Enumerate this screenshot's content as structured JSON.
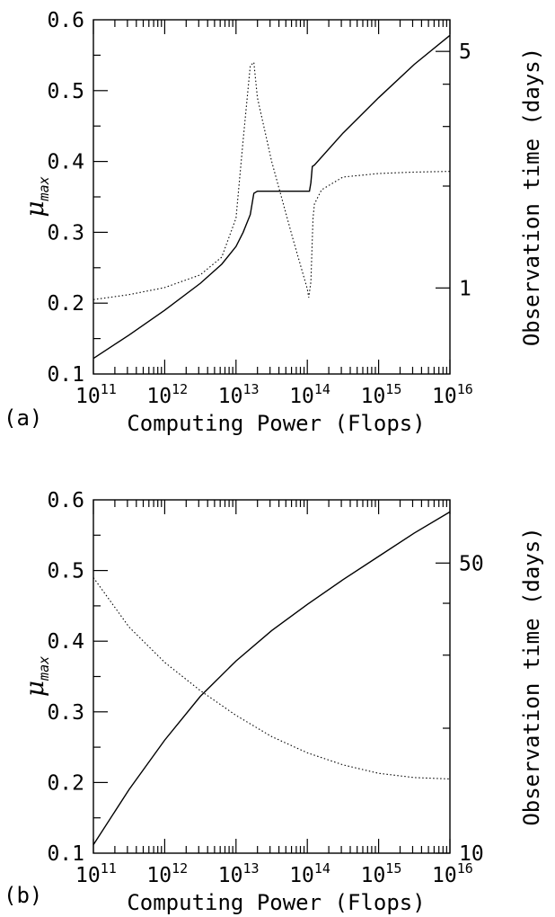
{
  "chart_data": [
    {
      "type": "line",
      "panel_label": "(a)",
      "xlabel": "Computing Power (Flops)",
      "xscale": "log",
      "xlim_exp": [
        11,
        16
      ],
      "x_ticks": [
        {
          "base": "10",
          "exp": "11"
        },
        {
          "base": "10",
          "exp": "12"
        },
        {
          "base": "10",
          "exp": "13"
        },
        {
          "base": "10",
          "exp": "14"
        },
        {
          "base": "10",
          "exp": "15"
        },
        {
          "base": "10",
          "exp": "16"
        }
      ],
      "ylabel_symbol": "μ",
      "ylabel_sub": "max",
      "ylim": [
        0.1,
        0.6
      ],
      "y_ticks": [
        "0.1",
        "0.2",
        "0.3",
        "0.4",
        "0.5",
        "0.6"
      ],
      "y2label": "Observation time (days)",
      "y2scale": "log",
      "y2_ticks": [
        {
          "value": 1,
          "label": "1"
        },
        {
          "value": 5,
          "label": "5"
        }
      ],
      "y2_minor": [
        2,
        3,
        4
      ],
      "y2lim": [
        0.557,
        6.2
      ],
      "series": [
        {
          "style": "solid",
          "axis": "left",
          "x_exp": [
            11,
            11.5,
            12,
            12.5,
            12.8,
            13,
            13.1,
            13.2,
            13.25,
            13.3,
            13.5,
            13.8,
            14,
            14.03,
            14.05,
            14.07,
            14.1,
            14.5,
            15,
            15.5,
            16
          ],
          "y": [
            0.122,
            0.155,
            0.19,
            0.228,
            0.255,
            0.28,
            0.3,
            0.325,
            0.355,
            0.358,
            0.358,
            0.358,
            0.358,
            0.358,
            0.37,
            0.393,
            0.395,
            0.44,
            0.49,
            0.537,
            0.578
          ]
        },
        {
          "style": "dotted",
          "axis": "left",
          "x_exp": [
            11,
            11.5,
            12,
            12.5,
            12.8,
            13,
            13.1,
            13.2,
            13.25,
            13.3,
            13.5,
            13.8,
            14,
            14.02,
            14.05,
            14.08,
            14.1,
            14.2,
            14.5,
            15,
            15.5,
            16
          ],
          "y": [
            0.205,
            0.212,
            0.222,
            0.24,
            0.265,
            0.32,
            0.43,
            0.535,
            0.54,
            0.49,
            0.4,
            0.29,
            0.22,
            0.208,
            0.23,
            0.32,
            0.34,
            0.36,
            0.378,
            0.383,
            0.385,
            0.386
          ]
        }
      ]
    },
    {
      "type": "line",
      "panel_label": "(b)",
      "xlabel": "Computing Power (Flops)",
      "xscale": "log",
      "xlim_exp": [
        11,
        16
      ],
      "x_ticks": [
        {
          "base": "10",
          "exp": "11"
        },
        {
          "base": "10",
          "exp": "12"
        },
        {
          "base": "10",
          "exp": "13"
        },
        {
          "base": "10",
          "exp": "14"
        },
        {
          "base": "10",
          "exp": "15"
        },
        {
          "base": "10",
          "exp": "16"
        }
      ],
      "ylabel_symbol": "μ",
      "ylabel_sub": "max",
      "ylim": [
        0.1,
        0.6
      ],
      "y_ticks": [
        "0.1",
        "0.2",
        "0.3",
        "0.4",
        "0.5",
        "0.6"
      ],
      "y2label": "Observation time (days)",
      "y2scale": "log",
      "y2_ticks": [
        {
          "value": 10,
          "label": "10"
        },
        {
          "value": 50,
          "label": "50"
        }
      ],
      "y2_minor": [
        20,
        30,
        40
      ],
      "y2lim": [
        10,
        71
      ],
      "series": [
        {
          "style": "solid",
          "axis": "left",
          "x_exp": [
            11,
            11.5,
            12,
            12.5,
            13,
            13.5,
            14,
            14.5,
            15,
            15.5,
            16
          ],
          "y": [
            0.112,
            0.19,
            0.26,
            0.322,
            0.372,
            0.415,
            0.452,
            0.487,
            0.52,
            0.553,
            0.583
          ]
        },
        {
          "style": "dotted",
          "axis": "left",
          "x_exp": [
            11,
            11.5,
            12,
            12.5,
            13,
            13.5,
            14,
            14.5,
            15,
            15.5,
            16
          ],
          "y": [
            0.49,
            0.42,
            0.37,
            0.33,
            0.295,
            0.265,
            0.242,
            0.225,
            0.213,
            0.207,
            0.205
          ]
        }
      ]
    }
  ]
}
